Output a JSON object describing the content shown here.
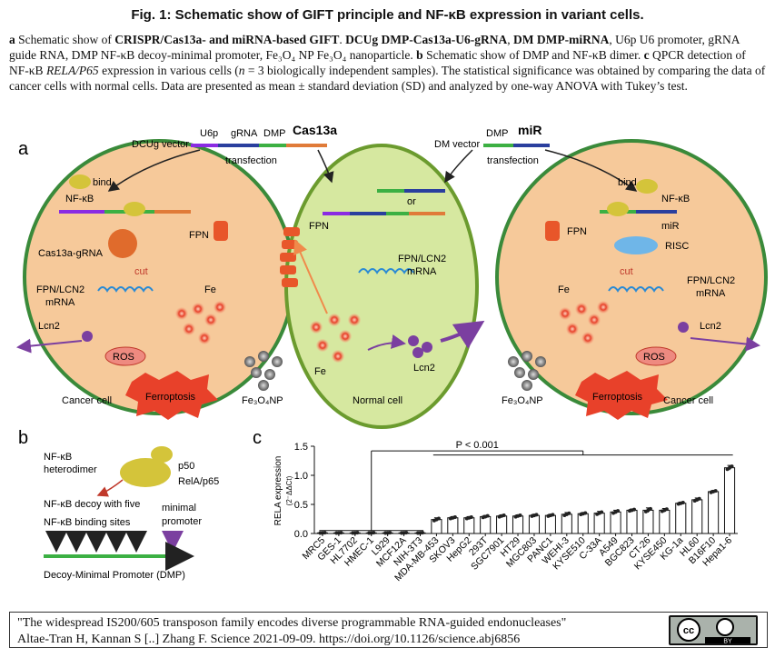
{
  "figure": {
    "title": "Fig. 1: Schematic show of GIFT principle and NF-κB expression in variant cells.",
    "caption": {
      "a_label": "a",
      "a_text_1": " Schematic show of ",
      "a_bold_1": "CRISPR/Cas13a- and miRNA-based GIFT",
      "a_text_2": ". ",
      "a_bold_2": "DCUg DMP-Cas13a-U6-gRNA",
      "a_text_3": ", ",
      "a_bold_3": "DM DMP-miRNA",
      "a_text_4": ", U6p U6 promoter, gRNA guide RNA, DMP NF-κB decoy-minimal promoter, Fe₃O₄ NP Fe₃O₄ nanoparticle. ",
      "b_label": "b",
      "b_text": " Schematic show of DMP and NF-κB dimer. ",
      "c_label": "c",
      "c_text_1": " QPCR detection of NF-κB ",
      "c_italic": "RELA/P65",
      "c_text_2": " expression in various cells (",
      "c_n": "n",
      "c_text_3": " = 3 biologically independent samples). The statistical significance was obtained by comparing the data of cancer cells with normal cells. Data are presented as mean ± standard deviation (SD) and analyzed by one-way ANOVA with Tukey’s test."
    }
  },
  "panel_a": {
    "letter": "a",
    "dcug_vector": "DCUg vector",
    "u6p": "U6p",
    "grna": "gRNA",
    "dmp": "DMP",
    "cas13a": "Cas13a",
    "transfection": "transfection",
    "dm_vector": "DM vector",
    "dmp2": "DMP",
    "mir": "miR",
    "transfection2": "transfection",
    "or": "or",
    "left_cell": {
      "bind": "bind",
      "nfkb": "NF-κB",
      "cas13a_grna": "Cas13a-gRNA",
      "cut": "cut",
      "fpn_lcn2": "FPN/LCN2",
      "mrna": "mRNA",
      "fpn": "FPN",
      "fe": "Fe",
      "lcn2": "Lcn2",
      "ros": "ROS",
      "ferroptosis": "Ferroptosis",
      "cancer_cell": "Cancer cell"
    },
    "middle_cell": {
      "fpn": "FPN",
      "fpn_lcn2": "FPN/LCN2",
      "mrna": "mRNA",
      "fe": "Fe",
      "lcn2": "Lcn2",
      "normal_cell": "Normal cell"
    },
    "right_cell": {
      "bind": "bind",
      "nfkb": "NF-κB",
      "mir": "miR",
      "risc": "RISC",
      "fpn": "FPN",
      "cut": "cut",
      "fpn_lcn2": "FPN/LCN2",
      "mrna": "mRNA",
      "fe": "Fe",
      "lcn2": "Lcn2",
      "ros": "ROS",
      "ferroptosis": "Ferroptosis",
      "cancer_cell": "Cancer cell"
    },
    "fe3o4np_left": "Fe₃O₄NP",
    "fe3o4np_right": "Fe₃O₄NP"
  },
  "panel_b": {
    "letter": "b",
    "nfkb_heterodimer_1": "NF-κB",
    "nfkb_heterodimer_2": "heterodimer",
    "p50": "p50",
    "relap65": "RelA/p65",
    "decoy_line1": "NF-κB decoy with five",
    "decoy_line2": "NF-κB binding sites",
    "minimal_1": "minimal",
    "minimal_2": "promoter",
    "dmp_label": "Decoy-Minimal Promoter (DMP)"
  },
  "chart_data": {
    "type": "bar",
    "panel_letter": "c",
    "ylabel": "RELA expression",
    "ylabel_unit": "(2⁻ΔΔCt)",
    "ylim": [
      0,
      1.5
    ],
    "yticks": [
      "0.0",
      "0.5",
      "1.0",
      "1.5"
    ],
    "significance_label": "P < 0.001",
    "categories": [
      "MRC5",
      "GES-1",
      "HL7702",
      "HMEC-1",
      "L929",
      "MCF12A",
      "NIH-3T3",
      "MDA-MB-453",
      "SKOV3",
      "HepG2",
      "293T",
      "SGC7901",
      "HT29",
      "MGC803",
      "PANC1",
      "WEHI-3",
      "KYSE510",
      "C-33A",
      "A549",
      "BGC823",
      "CT-26",
      "KYSE450",
      "KG-1a",
      "HL60",
      "B16F10",
      "Hepa1-6"
    ],
    "values": [
      0.01,
      0.01,
      0.01,
      0.01,
      0.01,
      0.01,
      0.01,
      0.24,
      0.27,
      0.27,
      0.29,
      0.3,
      0.3,
      0.31,
      0.31,
      0.33,
      0.34,
      0.35,
      0.37,
      0.4,
      0.4,
      0.4,
      0.52,
      0.58,
      0.72,
      1.13
    ],
    "errors": [
      0.005,
      0.005,
      0.005,
      0.005,
      0.005,
      0.005,
      0.005,
      0.03,
      0.02,
      0.02,
      0.02,
      0.02,
      0.02,
      0.02,
      0.02,
      0.03,
      0.02,
      0.03,
      0.03,
      0.02,
      0.04,
      0.03,
      0.02,
      0.03,
      0.02,
      0.04
    ],
    "normal_group_count": 7
  },
  "citation": {
    "line1": "\"The widespread IS200/605 transposon family encodes diverse programmable RNA-guided endonucleases\"",
    "line2": "Altae-Tran H, Kannan S [..] Zhang F. Science 2021-09-09.  https://doi.org/10.1126/science.abj6856",
    "badge_cc": "cc",
    "badge_by": "BY"
  }
}
